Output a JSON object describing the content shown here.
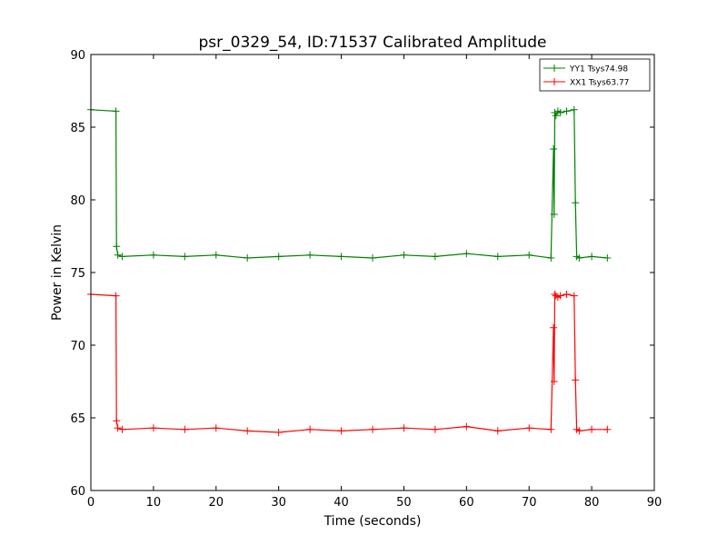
{
  "chart_data": {
    "type": "line",
    "title": "psr_0329_54, ID:71537 Calibrated Amplitude",
    "xlabel": "Time (seconds)",
    "ylabel": "Power in Kelvin",
    "xlim": [
      0,
      90
    ],
    "ylim": [
      60,
      90
    ],
    "xticks": [
      "0",
      "10",
      "20",
      "30",
      "40",
      "50",
      "60",
      "70",
      "80",
      "90"
    ],
    "yticks": [
      "60",
      "65",
      "70",
      "75",
      "80",
      "85",
      "90"
    ],
    "grid": false,
    "legend_position": "top-right",
    "marker": "+",
    "series": [
      {
        "name": "YY1 Tsys74.98",
        "color": "#008000",
        "x": [
          0,
          4.0,
          4.1,
          4.3,
          5,
          10,
          15,
          20,
          25,
          30,
          35,
          40,
          45,
          50,
          55,
          60,
          65,
          70,
          73.5,
          73.9,
          74.0,
          74.1,
          74.3,
          74.6,
          75,
          76,
          77.2,
          77.4,
          77.6,
          78,
          80,
          82.5
        ],
        "y": [
          86.2,
          86.1,
          76.8,
          76.2,
          76.1,
          76.2,
          76.1,
          76.2,
          76.0,
          76.1,
          76.2,
          76.1,
          76.0,
          76.2,
          76.1,
          76.3,
          76.1,
          76.2,
          76.0,
          83.5,
          79.0,
          86.0,
          85.8,
          86.1,
          86.0,
          86.1,
          86.2,
          79.8,
          76.1,
          76.0,
          76.1,
          76.0
        ]
      },
      {
        "name": "XX1 Tsys63.77",
        "color": "#ff0000",
        "x": [
          0,
          4.0,
          4.1,
          4.3,
          5,
          10,
          15,
          20,
          25,
          30,
          35,
          40,
          45,
          50,
          55,
          60,
          65,
          70,
          73.5,
          73.9,
          74.0,
          74.1,
          74.3,
          74.6,
          75,
          76,
          77.2,
          77.4,
          77.6,
          78,
          80,
          82.5
        ],
        "y": [
          73.5,
          73.4,
          64.8,
          64.3,
          64.2,
          64.3,
          64.2,
          64.3,
          64.1,
          64.0,
          64.2,
          64.1,
          64.2,
          64.3,
          64.2,
          64.4,
          64.1,
          64.3,
          64.2,
          71.2,
          67.5,
          73.5,
          73.4,
          73.3,
          73.4,
          73.5,
          73.4,
          67.6,
          64.2,
          64.1,
          64.2,
          64.2
        ]
      }
    ]
  }
}
